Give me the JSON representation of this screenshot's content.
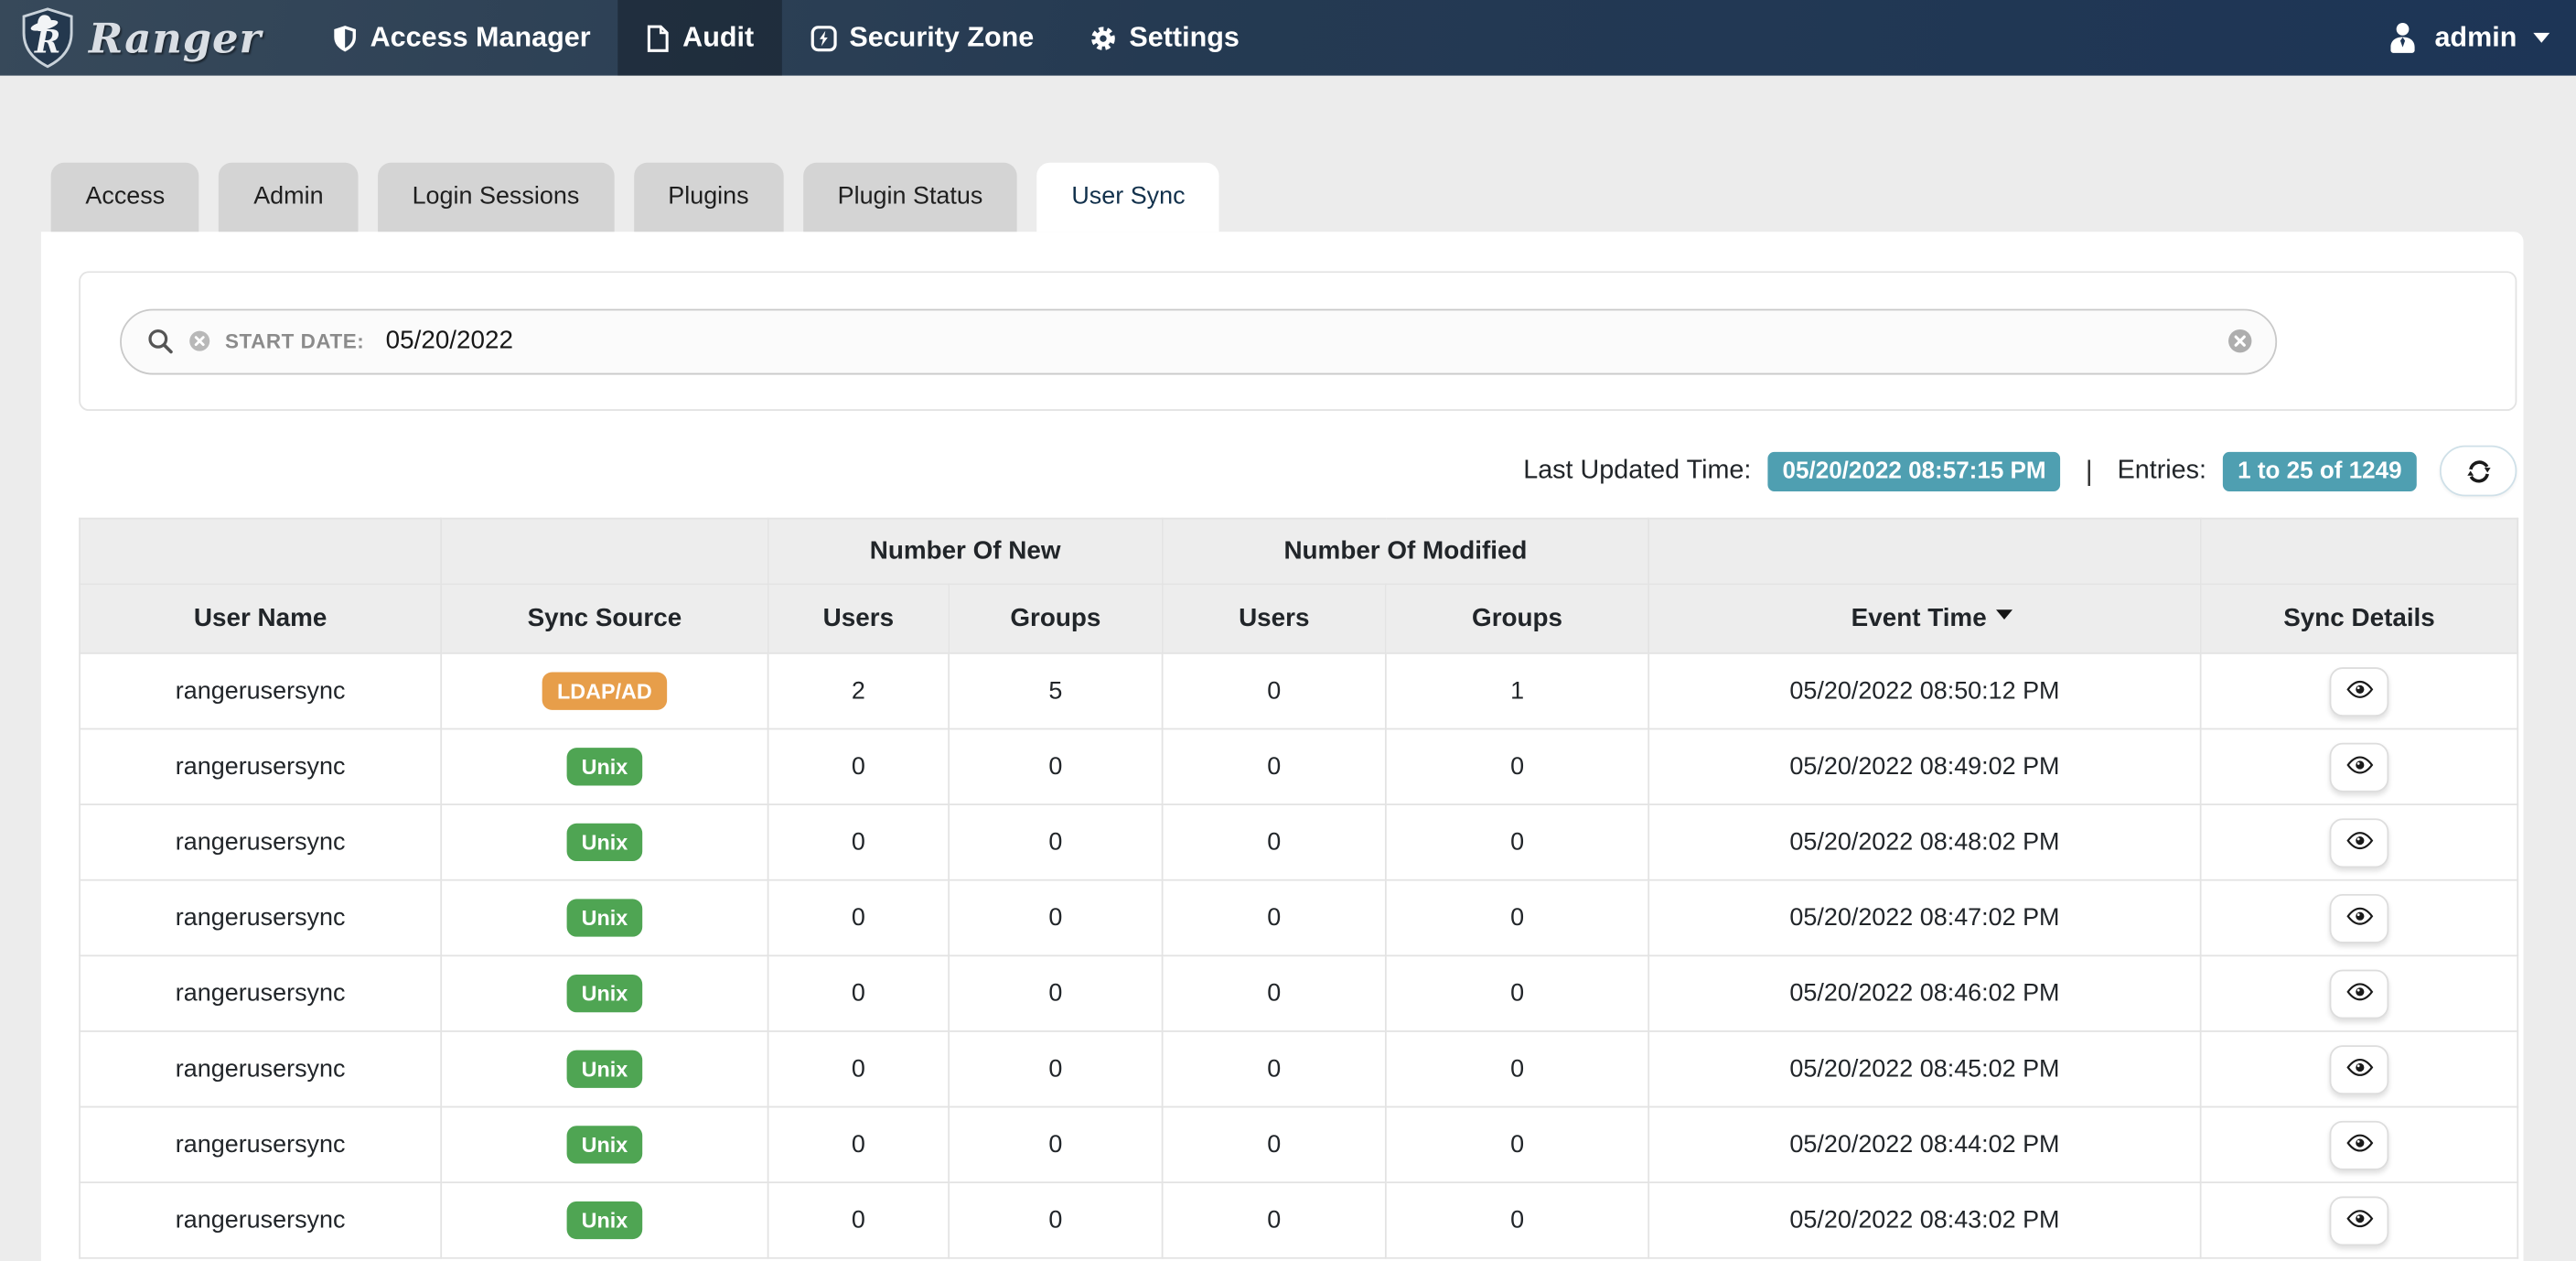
{
  "navbar": {
    "brand": "Ranger",
    "items": [
      {
        "label": "Access Manager",
        "icon": "shield-icon",
        "active": false
      },
      {
        "label": "Audit",
        "icon": "document-icon",
        "active": true
      },
      {
        "label": "Security Zone",
        "icon": "bolt-square-icon",
        "active": false
      },
      {
        "label": "Settings",
        "icon": "gear-icon",
        "active": false
      }
    ],
    "user": "admin",
    "user_icon": "user-icon"
  },
  "tabs": [
    {
      "label": "Access",
      "active": false
    },
    {
      "label": "Admin",
      "active": false
    },
    {
      "label": "Login Sessions",
      "active": false
    },
    {
      "label": "Plugins",
      "active": false
    },
    {
      "label": "Plugin Status",
      "active": false
    },
    {
      "label": "User Sync",
      "active": true
    }
  ],
  "search": {
    "icon": "search-icon",
    "filter_remove_icon": "circle-x-icon",
    "filter_label": "START DATE:",
    "filter_value": "05/20/2022",
    "clear_icon": "circle-x-icon"
  },
  "meta": {
    "last_updated_label": "Last Updated Time:",
    "last_updated_value": "05/20/2022 08:57:15 PM",
    "separator": "|",
    "entries_label": "Entries:",
    "entries_value": "1 to 25 of 1249",
    "refresh_icon": "refresh-icon"
  },
  "table": {
    "group_new": "Number Of New",
    "group_modified": "Number Of Modified",
    "columns": [
      "User Name",
      "Sync Source",
      "Users",
      "Groups",
      "Users",
      "Groups",
      "Event Time",
      "Sync Details"
    ],
    "sort_column": "Event Time",
    "sort_direction": "desc",
    "details_icon": "eye-icon",
    "rows": [
      {
        "user_name": "rangerusersync",
        "sync_source": {
          "label": "LDAP/AD",
          "type": "ldap"
        },
        "new_users": "2",
        "new_groups": "5",
        "mod_users": "0",
        "mod_groups": "1",
        "event_time": "05/20/2022 08:50:12 PM"
      },
      {
        "user_name": "rangerusersync",
        "sync_source": {
          "label": "Unix",
          "type": "unix"
        },
        "new_users": "0",
        "new_groups": "0",
        "mod_users": "0",
        "mod_groups": "0",
        "event_time": "05/20/2022 08:49:02 PM"
      },
      {
        "user_name": "rangerusersync",
        "sync_source": {
          "label": "Unix",
          "type": "unix"
        },
        "new_users": "0",
        "new_groups": "0",
        "mod_users": "0",
        "mod_groups": "0",
        "event_time": "05/20/2022 08:48:02 PM"
      },
      {
        "user_name": "rangerusersync",
        "sync_source": {
          "label": "Unix",
          "type": "unix"
        },
        "new_users": "0",
        "new_groups": "0",
        "mod_users": "0",
        "mod_groups": "0",
        "event_time": "05/20/2022 08:47:02 PM"
      },
      {
        "user_name": "rangerusersync",
        "sync_source": {
          "label": "Unix",
          "type": "unix"
        },
        "new_users": "0",
        "new_groups": "0",
        "mod_users": "0",
        "mod_groups": "0",
        "event_time": "05/20/2022 08:46:02 PM"
      },
      {
        "user_name": "rangerusersync",
        "sync_source": {
          "label": "Unix",
          "type": "unix"
        },
        "new_users": "0",
        "new_groups": "0",
        "mod_users": "0",
        "mod_groups": "0",
        "event_time": "05/20/2022 08:45:02 PM"
      },
      {
        "user_name": "rangerusersync",
        "sync_source": {
          "label": "Unix",
          "type": "unix"
        },
        "new_users": "0",
        "new_groups": "0",
        "mod_users": "0",
        "mod_groups": "0",
        "event_time": "05/20/2022 08:44:02 PM"
      },
      {
        "user_name": "rangerusersync",
        "sync_source": {
          "label": "Unix",
          "type": "unix"
        },
        "new_users": "0",
        "new_groups": "0",
        "mod_users": "0",
        "mod_groups": "0",
        "event_time": "05/20/2022 08:43:02 PM"
      }
    ]
  },
  "colors": {
    "navbar_left": "#37495a",
    "navbar_mid": "#253a52",
    "navbar_right": "#1d3556",
    "badge_teal": "#4f9fb1",
    "badge_ldap": "#e79e4a",
    "badge_unix": "#4fa553",
    "page_bg": "#ececec"
  }
}
